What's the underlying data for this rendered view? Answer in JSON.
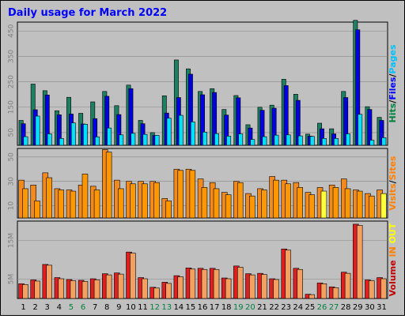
{
  "chart_data": {
    "title": "Daily usage for March 2022",
    "type": "bar",
    "days": [
      {
        "label": "1",
        "weekend": false
      },
      {
        "label": "2",
        "weekend": false
      },
      {
        "label": "3",
        "weekend": false
      },
      {
        "label": "4",
        "weekend": false
      },
      {
        "label": "5",
        "weekend": true
      },
      {
        "label": "6",
        "weekend": true
      },
      {
        "label": "7",
        "weekend": false
      },
      {
        "label": "8",
        "weekend": false
      },
      {
        "label": "9",
        "weekend": false
      },
      {
        "label": "10",
        "weekend": false
      },
      {
        "label": "11",
        "weekend": false
      },
      {
        "label": "12",
        "weekend": true
      },
      {
        "label": "13",
        "weekend": true
      },
      {
        "label": "14",
        "weekend": false
      },
      {
        "label": "15",
        "weekend": false
      },
      {
        "label": "16",
        "weekend": false
      },
      {
        "label": "17",
        "weekend": false
      },
      {
        "label": "18",
        "weekend": false
      },
      {
        "label": "19",
        "weekend": true
      },
      {
        "label": "20",
        "weekend": true
      },
      {
        "label": "21",
        "weekend": false
      },
      {
        "label": "22",
        "weekend": false
      },
      {
        "label": "23",
        "weekend": false
      },
      {
        "label": "24",
        "weekend": false
      },
      {
        "label": "25",
        "weekend": false
      },
      {
        "label": "26",
        "weekend": true
      },
      {
        "label": "27",
        "weekend": true
      },
      {
        "label": "28",
        "weekend": false
      },
      {
        "label": "29",
        "weekend": false
      },
      {
        "label": "30",
        "weekend": false
      },
      {
        "label": "31",
        "weekend": false
      }
    ],
    "panels": [
      {
        "name": "hits-files-pages",
        "ylim": [
          0,
          485
        ],
        "yticks": [
          50,
          150,
          250,
          350,
          450
        ],
        "legend": [
          {
            "text": "Hits",
            "color": "#008040"
          },
          {
            "text": "/",
            "color": "#000000"
          },
          {
            "text": "Files",
            "color": "#0000ff"
          },
          {
            "text": "/",
            "color": "#000000"
          },
          {
            "text": "Pages",
            "color": "#00c0ff"
          }
        ],
        "series": [
          {
            "name": "Hits",
            "color": "#1e7f61",
            "values": [
              98,
              241,
              215,
              136,
              189,
              126,
              171,
              212,
              156,
              237,
              98,
              50,
              195,
              336,
              301,
              212,
              223,
              141,
              196,
              81,
              150,
              158,
              260,
              201,
              44,
              87,
              65,
              212,
              492,
              152,
              110
            ]
          },
          {
            "name": "Files",
            "color": "#0000e0",
            "values": [
              85,
              140,
              198,
              120,
              123,
              84,
              105,
              193,
              121,
              223,
              85,
              39,
              127,
              188,
              280,
              199,
              208,
              119,
              187,
              68,
              138,
              146,
              235,
              177,
              36,
              65,
              45,
              188,
              455,
              141,
              98
            ]
          },
          {
            "name": "Pages",
            "color": "#00e0ff",
            "values": [
              34,
              115,
              45,
              27,
              88,
              83,
              33,
              68,
              41,
              47,
              43,
              39,
              107,
              118,
              92,
              52,
              46,
              36,
              45,
              23,
              34,
              40,
              41,
              37,
              35,
              27,
              27,
              45,
              122,
              20,
              30
            ]
          }
        ]
      },
      {
        "name": "visits-sites",
        "ylim": [
          0,
          57
        ],
        "yticks": [
          10,
          30,
          50
        ],
        "legend": [
          {
            "text": "Visits",
            "color": "#ff8000"
          },
          {
            "text": "/",
            "color": "#000000"
          },
          {
            "text": "Sites",
            "color": "#ff8000"
          }
        ],
        "series": [
          {
            "name": "Visits",
            "color": "#f28a1e",
            "values": [
              31,
              27,
              37,
              24,
              23,
              27,
              26,
              56,
              31,
              30,
              30,
              30,
              16,
              40,
              40,
              32,
              29,
              21,
              30,
              20,
              24,
              34,
              31,
              29,
              21,
              25,
              27,
              32,
              23,
              20,
              23
            ]
          },
          {
            "name": "Sites",
            "color": "#ff9800",
            "values": [
              24,
              14,
              33,
              23,
              22,
              36,
              23,
              54,
              24,
              28,
              28,
              29,
              14,
              39,
              39,
              25,
              24,
              19,
              29,
              18,
              23,
              31,
              28,
              25,
              19,
              22,
              25,
              24,
              22,
              18,
              20
            ]
          }
        ],
        "highlight_color": "#ffff40",
        "highlights": [
          25,
          30
        ]
      },
      {
        "name": "volume",
        "ylim": [
          0,
          20
        ],
        "yticks": [
          5,
          15
        ],
        "ytick_labels": [
          "5M",
          "15M"
        ],
        "legend": [
          {
            "text": "Volume",
            "color": "#c00000"
          },
          {
            "text": "IN",
            "color": "#ff8000"
          },
          {
            "text": "OUT",
            "color": "#ffff00"
          }
        ],
        "series": [
          {
            "name": "Volume",
            "color": "#e02020",
            "values": [
              3.8,
              4.8,
              8.8,
              5.4,
              4.9,
              4.7,
              5.1,
              6.4,
              6.6,
              12.0,
              5.4,
              2.9,
              4.2,
              5.9,
              7.9,
              7.8,
              7.8,
              5.3,
              8.4,
              6.4,
              6.5,
              5.1,
              12.8,
              7.8,
              1.1,
              4.0,
              3.0,
              6.8,
              19.2,
              4.8,
              5.4
            ]
          },
          {
            "name": "IN",
            "color": "#f4a060",
            "values": [
              3.6,
              4.5,
              8.6,
              5.1,
              4.6,
              4.4,
              4.8,
              6.1,
              6.3,
              11.7,
              5.1,
              2.7,
              3.9,
              5.6,
              7.6,
              7.5,
              7.5,
              5.1,
              8.1,
              6.1,
              6.2,
              4.9,
              12.5,
              7.5,
              1.0,
              3.8,
              2.8,
              6.5,
              18.9,
              4.6,
              5.1
            ]
          }
        ]
      }
    ]
  }
}
